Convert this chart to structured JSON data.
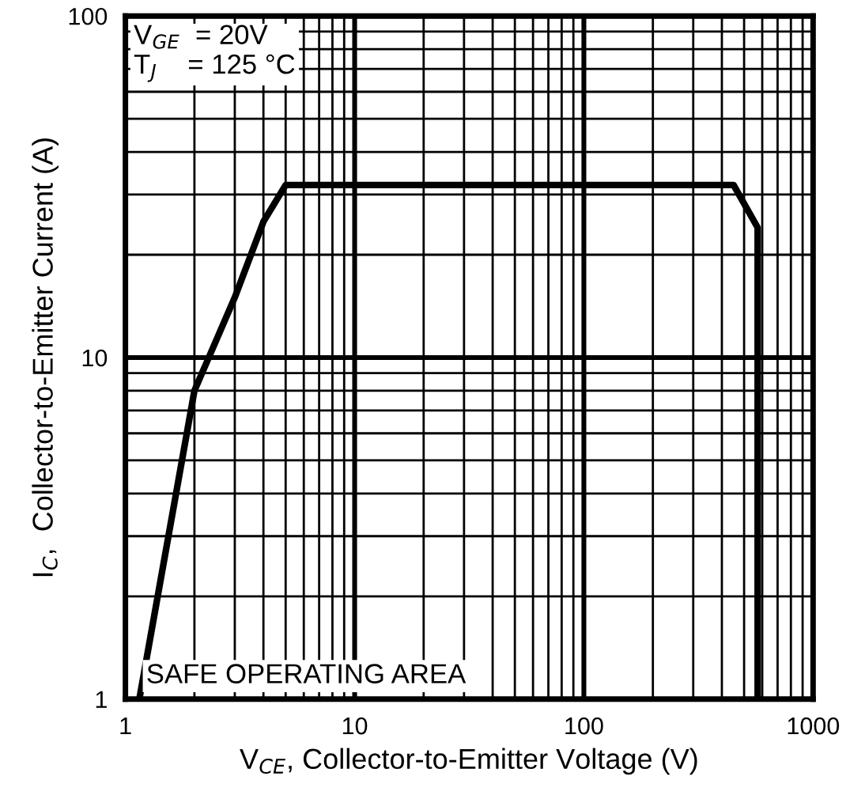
{
  "chart_data": {
    "type": "line",
    "xlabel": "V$_{CE}$, Collector-to-Emitter Voltage (V)",
    "ylabel": "I$_{C}$,  Collector-to-Emitter Current (A)",
    "x": [
      1.15,
      2,
      3,
      4,
      5,
      450,
      573,
      573
    ],
    "series": [
      {
        "color": "#000000",
        "values": [
          1,
          8,
          15,
          25,
          32,
          32,
          24,
          1
        ]
      }
    ],
    "log": "xy",
    "xlim": [
      1,
      1000
    ],
    "ylim": [
      1,
      100
    ],
    "xticks": [
      1,
      10,
      100,
      1000
    ],
    "yticks": [
      1,
      10,
      100
    ],
    "grid": true,
    "marker": "none",
    "line_style": "solid",
    "annotations": [
      "V$_{GE}$  = 20V\nT$_{J}$    = 125 °C",
      "SAFE OPERATING AREA"
    ]
  }
}
